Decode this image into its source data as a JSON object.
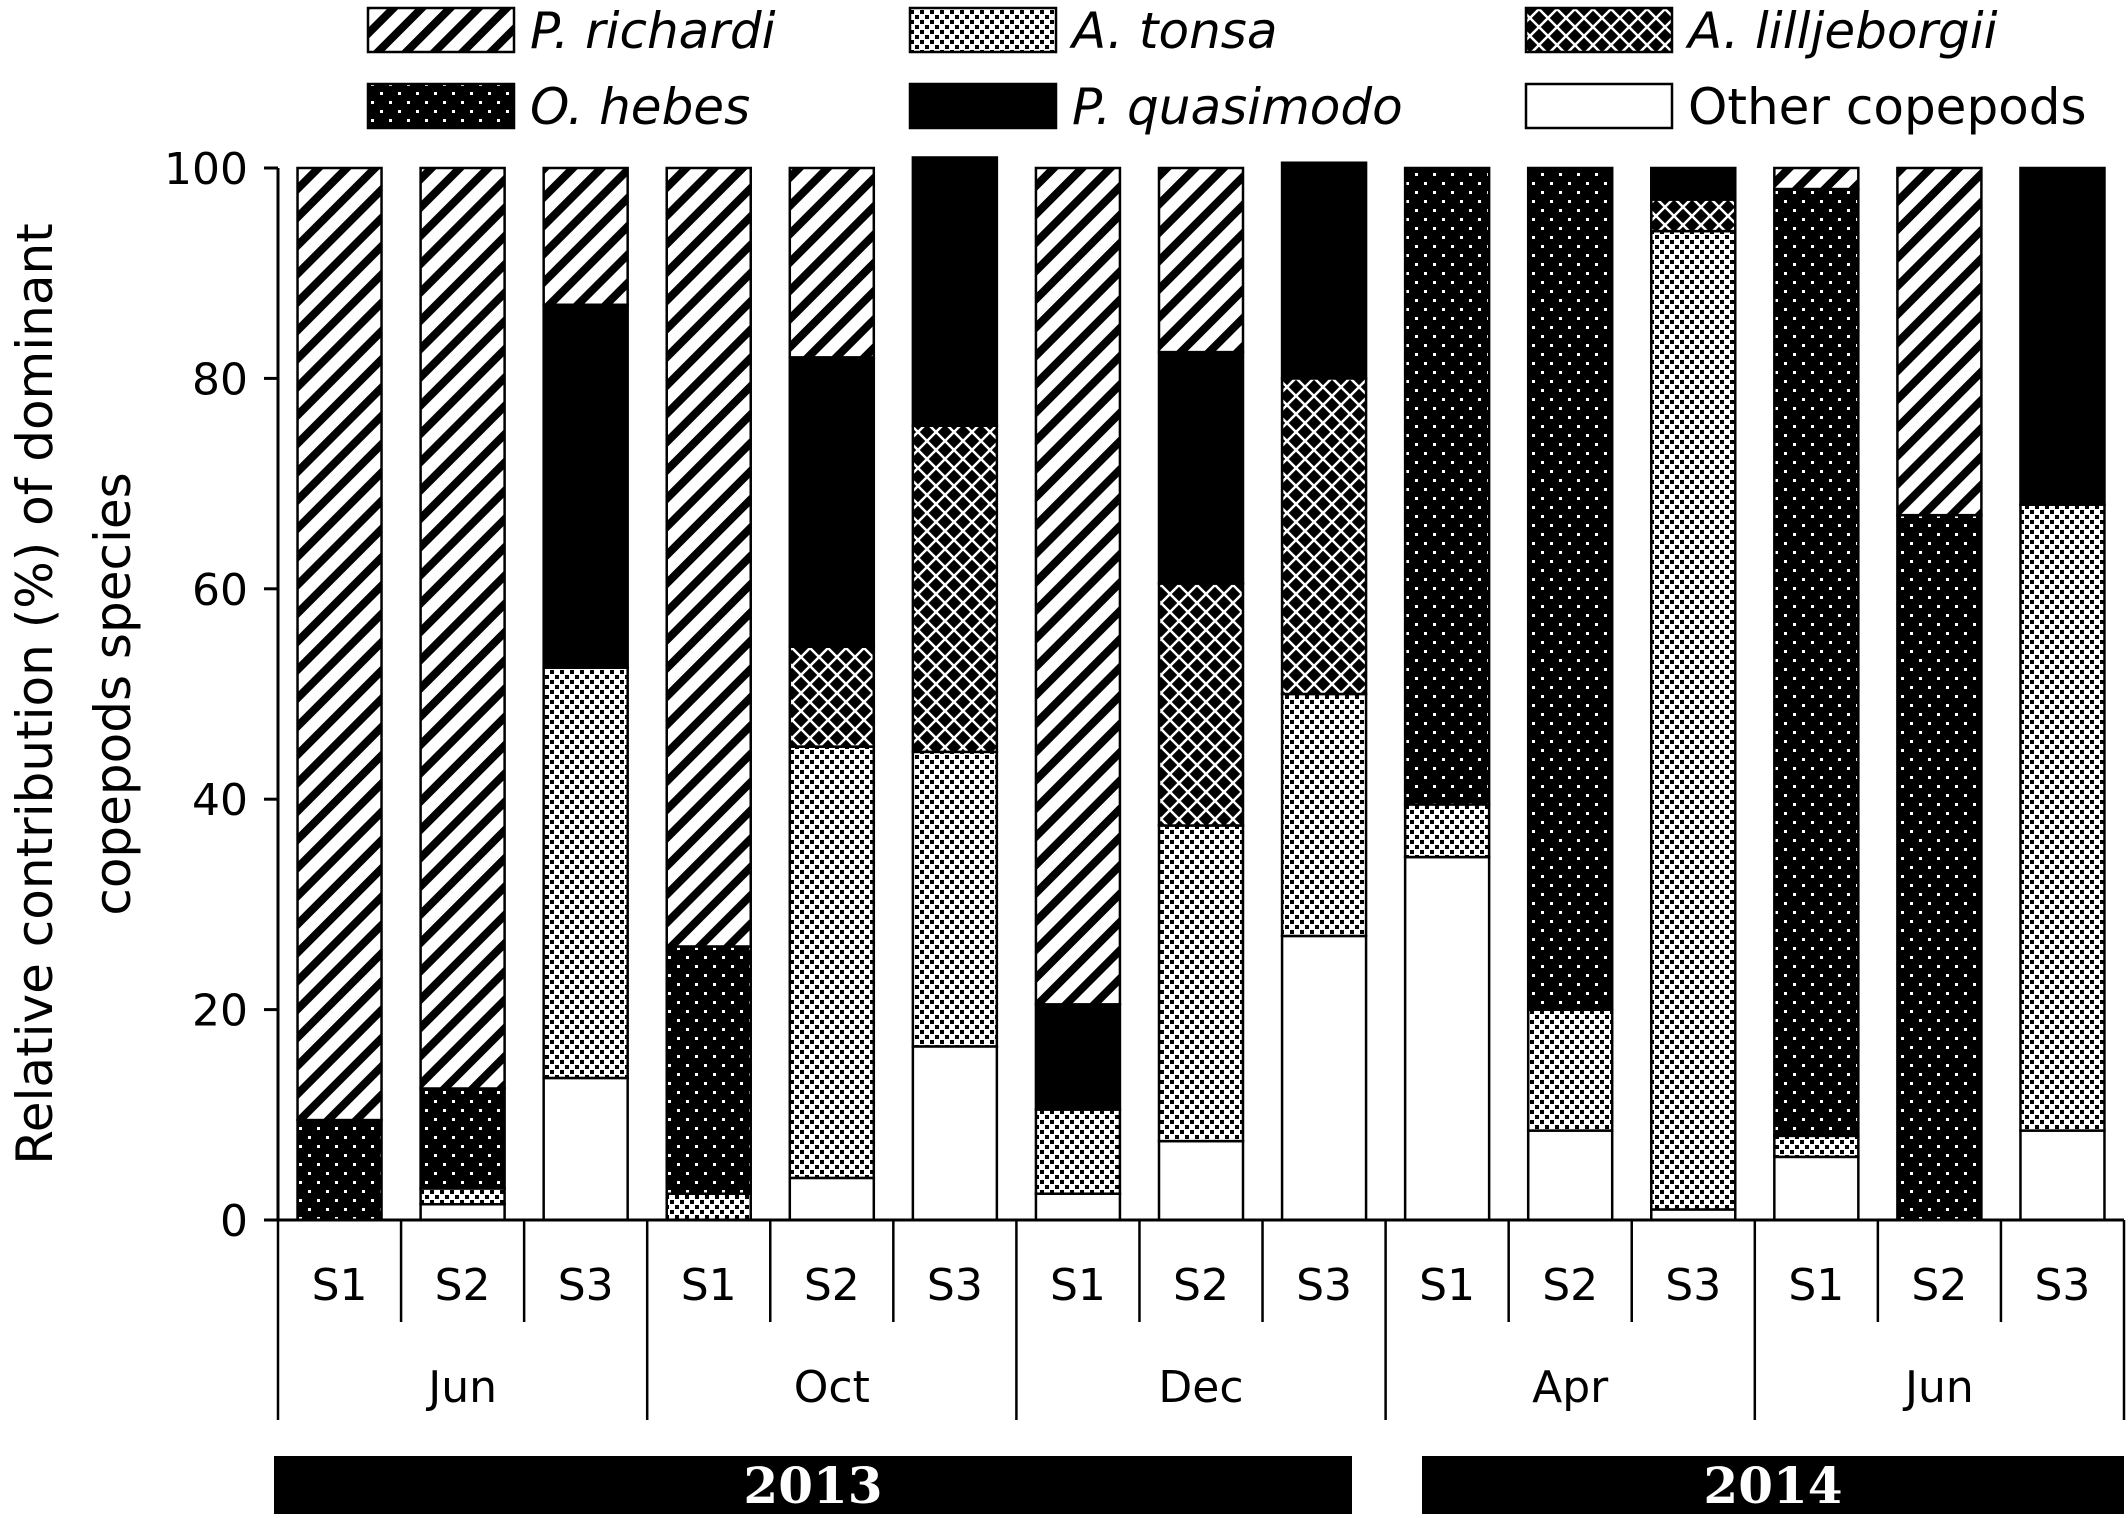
{
  "chart_data": {
    "type": "bar",
    "stacked": true,
    "title": "",
    "ylabel_lines": [
      "Relative contribution (%) of dominant",
      "copepods species"
    ],
    "ylim": [
      0,
      100
    ],
    "yticks": [
      0,
      20,
      40,
      60,
      80,
      100
    ],
    "categories": [
      "S1",
      "S2",
      "S3",
      "S1",
      "S2",
      "S3",
      "S1",
      "S2",
      "S3",
      "S1",
      "S2",
      "S3",
      "S1",
      "S2",
      "S3"
    ],
    "months": [
      "Jun",
      "Oct",
      "Dec",
      "Apr",
      "Jun"
    ],
    "years": [
      "2013",
      "2014"
    ],
    "legend_position": "top",
    "series": [
      {
        "name": "Other copepods",
        "pattern": "white",
        "values": [
          0,
          1.5,
          13.5,
          0,
          4,
          16.5,
          2.5,
          7.5,
          27,
          34.5,
          8.5,
          1,
          6,
          0,
          8.5
        ]
      },
      {
        "name": "A. tonsa",
        "pattern": "dots",
        "values": [
          0,
          1.5,
          39,
          2.5,
          41,
          28,
          8,
          30,
          23,
          5,
          11.5,
          93,
          2,
          0,
          59.5
        ]
      },
      {
        "name": "A. lilljeborgii",
        "pattern": "cross",
        "values": [
          0,
          0,
          0,
          0,
          9.5,
          31,
          0,
          23,
          30,
          0,
          0,
          3,
          0,
          0,
          0
        ]
      },
      {
        "name": "O. hebes",
        "pattern": "dotsdark",
        "values": [
          9.5,
          9.5,
          0,
          23.5,
          0,
          0,
          0,
          0,
          0,
          60.5,
          80,
          0,
          90,
          67,
          0
        ]
      },
      {
        "name": "P. quasimodo",
        "pattern": "black",
        "values": [
          0,
          0,
          34.5,
          0,
          27.5,
          25.5,
          10,
          22,
          20.5,
          0,
          0,
          3,
          0,
          0,
          32
        ]
      },
      {
        "name": "P. richardi",
        "pattern": "diag",
        "values": [
          90.5,
          87.5,
          13,
          74,
          18,
          0,
          79.5,
          17.5,
          0,
          0,
          0,
          0,
          2,
          33,
          0
        ]
      }
    ],
    "legend_order": [
      "P. richardi",
      "A. tonsa",
      "A. lilljeborgii",
      "O. hebes",
      "P. quasimodo",
      "Other copepods"
    ]
  }
}
